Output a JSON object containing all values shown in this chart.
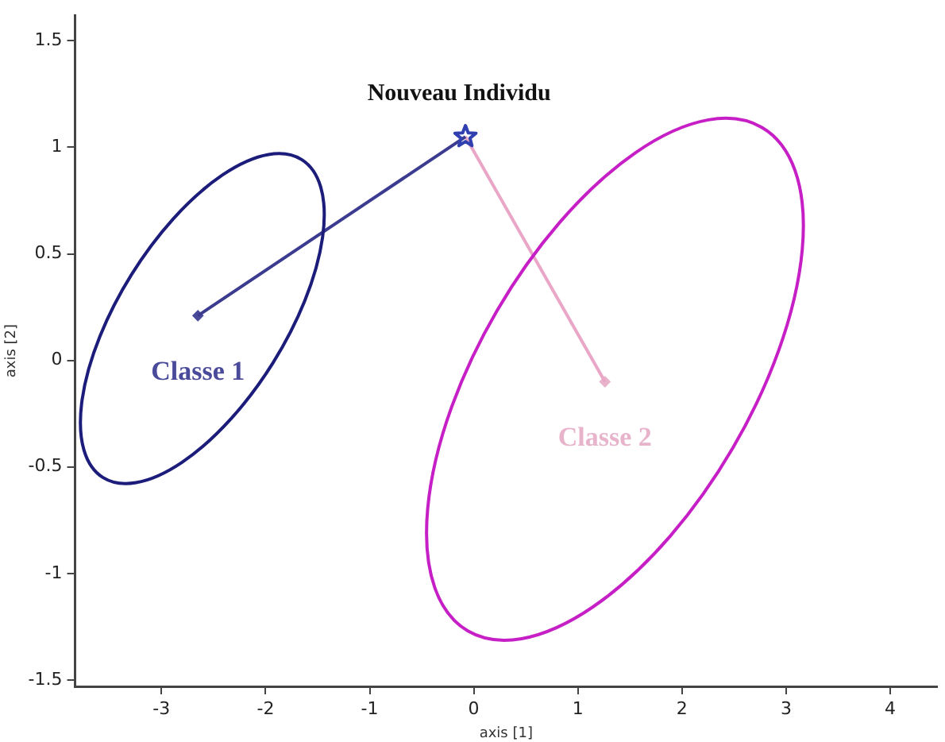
{
  "chart_data": {
    "type": "line",
    "xlabel": "axis [1]",
    "ylabel": "axis [2]",
    "xlim": [
      -3.83,
      4.45
    ],
    "xticks": [
      -3,
      -2,
      -1,
      0,
      1,
      2,
      3,
      4
    ],
    "ylim": [
      -1.53,
      1.62
    ],
    "yticks": [
      -1.5,
      -1,
      -0.5,
      0,
      0.5,
      1,
      1.5
    ],
    "grid": false,
    "legend": false,
    "series": [
      {
        "marker": "none",
        "color": "#3b3b8f",
        "x": [
          -2.65,
          -0.08
        ],
        "values": [
          0.21,
          1.05
        ]
      },
      {
        "marker": "none",
        "color": "#eaa6c6",
        "x": [
          -0.08,
          1.26
        ],
        "values": [
          1.05,
          -0.1
        ]
      },
      {
        "type": "scatter",
        "marker": "diamond",
        "name": "Classe 1",
        "color": "#4a4a9a",
        "x": [
          -2.65
        ],
        "values": [
          0.21
        ]
      },
      {
        "type": "scatter",
        "marker": "diamond",
        "name": "Classe 2",
        "color": "#e8b4cc",
        "x": [
          1.26
        ],
        "values": [
          -0.1
        ]
      },
      {
        "type": "scatter",
        "marker": "star",
        "name": "Nouveau Individu",
        "color": "#3040b0",
        "x": [
          -0.08
        ],
        "values": [
          1.05
        ]
      }
    ]
  }
}
